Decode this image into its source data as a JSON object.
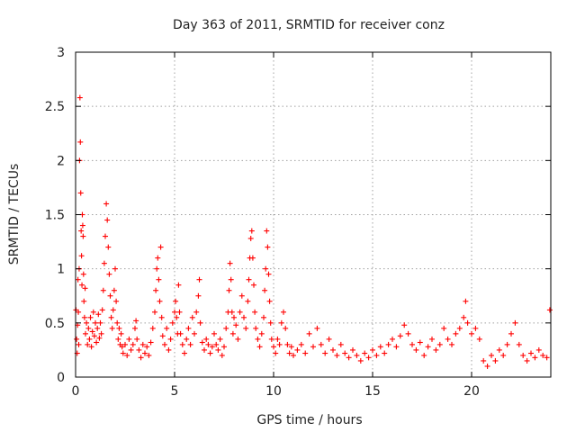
{
  "chart_data": {
    "type": "scatter",
    "title": "Day 363 of 2011, SRMTID for receiver conz",
    "xlabel": "GPS time / hours",
    "ylabel": "SRMTID / TECUs",
    "xlim": [
      0,
      24
    ],
    "ylim": [
      0,
      3
    ],
    "xticks": [
      0,
      5,
      10,
      15,
      20
    ],
    "yticks": [
      0,
      0.5,
      1,
      1.5,
      2,
      2.5,
      3
    ],
    "xtick_labels": [
      "0",
      "5",
      "10",
      "15",
      "20"
    ],
    "ytick_labels": [
      "0",
      "0.5",
      "1",
      "1.5",
      "2",
      "2.5",
      "3"
    ],
    "grid": true,
    "marker": "+",
    "color": "#ff0000",
    "series": [
      {
        "name": "SRMTID",
        "points": [
          [
            0.02,
            0.62
          ],
          [
            0.05,
            0.35
          ],
          [
            0.08,
            0.22
          ],
          [
            0.1,
            0.48
          ],
          [
            0.12,
            0.9
          ],
          [
            0.14,
            0.6
          ],
          [
            0.16,
            0.3
          ],
          [
            0.18,
            1.0
          ],
          [
            0.2,
            2.0
          ],
          [
            0.22,
            2.58
          ],
          [
            0.24,
            2.17
          ],
          [
            0.26,
            1.7
          ],
          [
            0.28,
            1.35
          ],
          [
            0.3,
            1.12
          ],
          [
            0.32,
            0.85
          ],
          [
            0.34,
            1.5
          ],
          [
            0.36,
            1.4
          ],
          [
            0.38,
            1.3
          ],
          [
            0.4,
            0.95
          ],
          [
            0.42,
            0.7
          ],
          [
            0.45,
            0.55
          ],
          [
            0.48,
            0.82
          ],
          [
            0.5,
            0.4
          ],
          [
            0.55,
            0.5
          ],
          [
            0.6,
            0.3
          ],
          [
            0.65,
            0.45
          ],
          [
            0.7,
            0.35
          ],
          [
            0.75,
            0.55
          ],
          [
            0.8,
            0.28
          ],
          [
            0.85,
            0.42
          ],
          [
            0.9,
            0.6
          ],
          [
            0.95,
            0.38
          ],
          [
            1.0,
            0.5
          ],
          [
            1.05,
            0.32
          ],
          [
            1.1,
            0.45
          ],
          [
            1.15,
            0.58
          ],
          [
            1.2,
            0.36
          ],
          [
            1.25,
            0.5
          ],
          [
            1.3,
            0.4
          ],
          [
            1.35,
            0.62
          ],
          [
            1.4,
            0.8
          ],
          [
            1.45,
            1.05
          ],
          [
            1.5,
            1.3
          ],
          [
            1.55,
            1.6
          ],
          [
            1.6,
            1.45
          ],
          [
            1.65,
            1.2
          ],
          [
            1.7,
            0.95
          ],
          [
            1.75,
            0.75
          ],
          [
            1.8,
            0.55
          ],
          [
            1.85,
            0.45
          ],
          [
            1.9,
            0.62
          ],
          [
            1.95,
            0.8
          ],
          [
            2.0,
            1.0
          ],
          [
            2.05,
            0.7
          ],
          [
            2.1,
            0.5
          ],
          [
            2.15,
            0.35
          ],
          [
            2.2,
            0.45
          ],
          [
            2.25,
            0.3
          ],
          [
            2.3,
            0.4
          ],
          [
            2.35,
            0.28
          ],
          [
            2.4,
            0.22
          ],
          [
            2.5,
            0.3
          ],
          [
            2.6,
            0.2
          ],
          [
            2.7,
            0.35
          ],
          [
            2.8,
            0.25
          ],
          [
            2.9,
            0.3
          ],
          [
            3.0,
            0.45
          ],
          [
            3.05,
            0.52
          ],
          [
            3.1,
            0.35
          ],
          [
            3.2,
            0.25
          ],
          [
            3.3,
            0.18
          ],
          [
            3.4,
            0.3
          ],
          [
            3.5,
            0.22
          ],
          [
            3.6,
            0.28
          ],
          [
            3.7,
            0.2
          ],
          [
            3.8,
            0.32
          ],
          [
            3.9,
            0.45
          ],
          [
            4.0,
            0.6
          ],
          [
            4.05,
            0.8
          ],
          [
            4.1,
            1.0
          ],
          [
            4.15,
            1.1
          ],
          [
            4.2,
            0.9
          ],
          [
            4.25,
            0.7
          ],
          [
            4.3,
            1.2
          ],
          [
            4.35,
            0.55
          ],
          [
            4.4,
            0.38
          ],
          [
            4.5,
            0.3
          ],
          [
            4.6,
            0.45
          ],
          [
            4.7,
            0.25
          ],
          [
            4.8,
            0.35
          ],
          [
            4.9,
            0.5
          ],
          [
            5.0,
            0.6
          ],
          [
            5.05,
            0.7
          ],
          [
            5.1,
            0.55
          ],
          [
            5.15,
            0.4
          ],
          [
            5.2,
            0.85
          ],
          [
            5.25,
            0.6
          ],
          [
            5.3,
            0.4
          ],
          [
            5.4,
            0.3
          ],
          [
            5.5,
            0.22
          ],
          [
            5.6,
            0.35
          ],
          [
            5.7,
            0.45
          ],
          [
            5.8,
            0.3
          ],
          [
            5.9,
            0.55
          ],
          [
            6.0,
            0.4
          ],
          [
            6.1,
            0.6
          ],
          [
            6.2,
            0.75
          ],
          [
            6.25,
            0.9
          ],
          [
            6.3,
            0.5
          ],
          [
            6.4,
            0.32
          ],
          [
            6.5,
            0.25
          ],
          [
            6.6,
            0.35
          ],
          [
            6.7,
            0.3
          ],
          [
            6.8,
            0.22
          ],
          [
            6.9,
            0.28
          ],
          [
            7.0,
            0.4
          ],
          [
            7.1,
            0.3
          ],
          [
            7.2,
            0.25
          ],
          [
            7.3,
            0.35
          ],
          [
            7.4,
            0.2
          ],
          [
            7.5,
            0.28
          ],
          [
            7.6,
            0.45
          ],
          [
            7.7,
            0.6
          ],
          [
            7.75,
            0.8
          ],
          [
            7.8,
            1.05
          ],
          [
            7.85,
            0.9
          ],
          [
            7.9,
            0.6
          ],
          [
            7.95,
            0.4
          ],
          [
            8.0,
            0.55
          ],
          [
            8.1,
            0.48
          ],
          [
            8.2,
            0.35
          ],
          [
            8.3,
            0.6
          ],
          [
            8.4,
            0.75
          ],
          [
            8.5,
            0.55
          ],
          [
            8.6,
            0.45
          ],
          [
            8.7,
            0.7
          ],
          [
            8.75,
            0.9
          ],
          [
            8.8,
            1.1
          ],
          [
            8.85,
            1.28
          ],
          [
            8.9,
            1.35
          ],
          [
            8.95,
            1.1
          ],
          [
            9.0,
            0.85
          ],
          [
            9.05,
            0.6
          ],
          [
            9.1,
            0.45
          ],
          [
            9.2,
            0.35
          ],
          [
            9.3,
            0.28
          ],
          [
            9.4,
            0.4
          ],
          [
            9.5,
            0.55
          ],
          [
            9.55,
            0.8
          ],
          [
            9.6,
            1.0
          ],
          [
            9.65,
            1.35
          ],
          [
            9.7,
            1.2
          ],
          [
            9.75,
            0.95
          ],
          [
            9.8,
            0.7
          ],
          [
            9.85,
            0.5
          ],
          [
            9.9,
            0.35
          ],
          [
            10.0,
            0.28
          ],
          [
            10.1,
            0.22
          ],
          [
            10.2,
            0.35
          ],
          [
            10.3,
            0.3
          ],
          [
            10.4,
            0.5
          ],
          [
            10.5,
            0.6
          ],
          [
            10.6,
            0.45
          ],
          [
            10.7,
            0.3
          ],
          [
            10.8,
            0.22
          ],
          [
            10.9,
            0.28
          ],
          [
            11.0,
            0.2
          ],
          [
            11.2,
            0.25
          ],
          [
            11.4,
            0.3
          ],
          [
            11.6,
            0.22
          ],
          [
            11.8,
            0.4
          ],
          [
            12.0,
            0.28
          ],
          [
            12.2,
            0.45
          ],
          [
            12.4,
            0.3
          ],
          [
            12.6,
            0.22
          ],
          [
            12.8,
            0.35
          ],
          [
            13.0,
            0.25
          ],
          [
            13.2,
            0.2
          ],
          [
            13.4,
            0.3
          ],
          [
            13.6,
            0.22
          ],
          [
            13.8,
            0.18
          ],
          [
            14.0,
            0.25
          ],
          [
            14.2,
            0.2
          ],
          [
            14.4,
            0.15
          ],
          [
            14.6,
            0.22
          ],
          [
            14.8,
            0.18
          ],
          [
            15.0,
            0.25
          ],
          [
            15.2,
            0.2
          ],
          [
            15.4,
            0.28
          ],
          [
            15.6,
            0.22
          ],
          [
            15.8,
            0.3
          ],
          [
            16.0,
            0.35
          ],
          [
            16.2,
            0.28
          ],
          [
            16.4,
            0.38
          ],
          [
            16.6,
            0.48
          ],
          [
            16.8,
            0.4
          ],
          [
            17.0,
            0.3
          ],
          [
            17.2,
            0.25
          ],
          [
            17.4,
            0.32
          ],
          [
            17.6,
            0.2
          ],
          [
            17.8,
            0.28
          ],
          [
            18.0,
            0.35
          ],
          [
            18.2,
            0.25
          ],
          [
            18.4,
            0.3
          ],
          [
            18.6,
            0.45
          ],
          [
            18.8,
            0.35
          ],
          [
            19.0,
            0.3
          ],
          [
            19.2,
            0.4
          ],
          [
            19.4,
            0.45
          ],
          [
            19.6,
            0.55
          ],
          [
            19.7,
            0.7
          ],
          [
            19.8,
            0.5
          ],
          [
            20.0,
            0.4
          ],
          [
            20.2,
            0.45
          ],
          [
            20.4,
            0.35
          ],
          [
            20.6,
            0.15
          ],
          [
            20.8,
            0.1
          ],
          [
            21.0,
            0.2
          ],
          [
            21.2,
            0.15
          ],
          [
            21.4,
            0.25
          ],
          [
            21.6,
            0.2
          ],
          [
            21.8,
            0.3
          ],
          [
            22.0,
            0.4
          ],
          [
            22.2,
            0.5
          ],
          [
            22.4,
            0.3
          ],
          [
            22.6,
            0.2
          ],
          [
            22.8,
            0.15
          ],
          [
            23.0,
            0.22
          ],
          [
            23.2,
            0.18
          ],
          [
            23.4,
            0.25
          ],
          [
            23.6,
            0.2
          ],
          [
            23.8,
            0.18
          ],
          [
            23.95,
            0.62
          ]
        ]
      }
    ]
  }
}
